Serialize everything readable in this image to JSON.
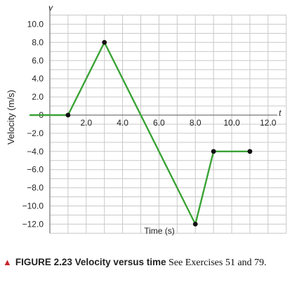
{
  "chart_data": {
    "type": "line",
    "x_axis_symbol": "t",
    "y_axis_symbol": "v",
    "xlabel": "Time (s)",
    "ylabel": "Velocity (m/s)",
    "xlim": [
      0,
      13
    ],
    "ylim": [
      -13,
      11
    ],
    "x_ticks": [
      2,
      4,
      6,
      8,
      10,
      12
    ],
    "x_tick_labels": [
      "2.0",
      "4.0",
      "6.0",
      "8.0",
      "10.0",
      "12.0"
    ],
    "y_ticks": [
      10,
      8,
      6,
      4,
      2,
      0,
      -2,
      -4,
      -6,
      -8,
      -10,
      -12
    ],
    "y_tick_labels": [
      "10.0",
      "8.0",
      "6.0",
      "4.0",
      "2.0",
      "0",
      "−2.0",
      "−4.0",
      "−6.0",
      "−8.0",
      "−10.0",
      "−12.0"
    ],
    "grid": true,
    "line_color": "#3aa335",
    "marker_color": "#111111",
    "series": [
      {
        "x": [
          0,
          1,
          3,
          8,
          9,
          11
        ],
        "y": [
          0,
          0,
          8,
          -12,
          -4,
          -4
        ],
        "markers": [
          false,
          true,
          true,
          true,
          true,
          true
        ]
      }
    ]
  },
  "caption": {
    "label": "FIGURE 2.23 Velocity versus time",
    "text": "See Exercises 51 and 79."
  }
}
